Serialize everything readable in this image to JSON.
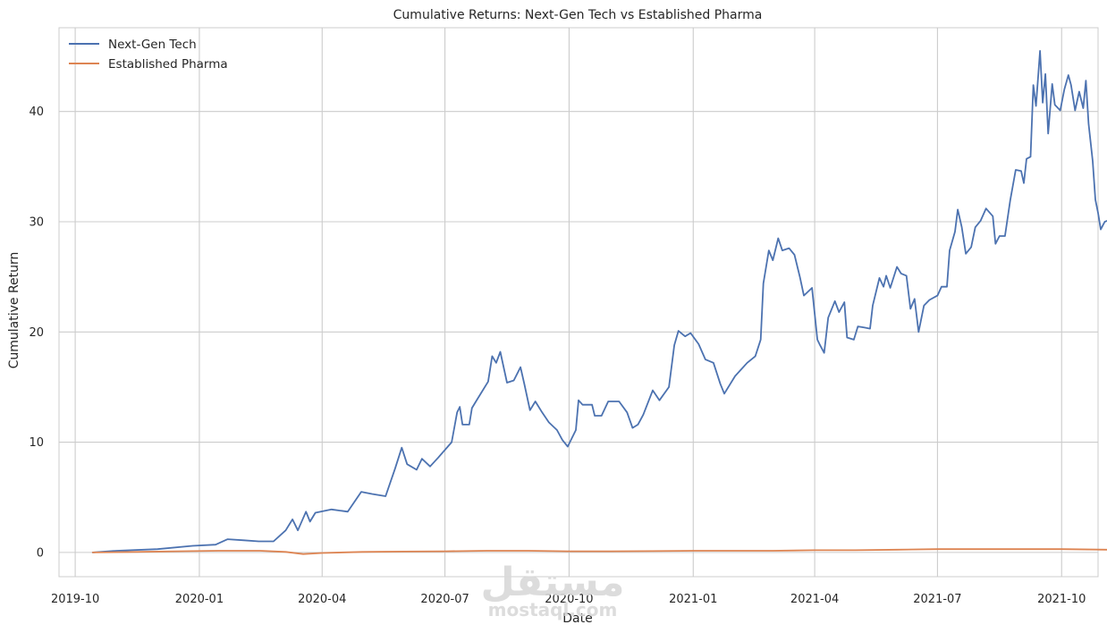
{
  "chart_data": {
    "type": "line",
    "title": "Cumulative Returns: Next-Gen Tech vs Established Pharma",
    "xlabel": "Date",
    "ylabel": "Cumulative Return",
    "xlim": [
      "2019-09-19",
      "2021-10-28"
    ],
    "ylim": [
      -2.2,
      47.6
    ],
    "x_ticks": [
      "2019-10",
      "2020-01",
      "2020-04",
      "2020-07",
      "2020-10",
      "2021-01",
      "2021-04",
      "2021-07",
      "2021-10"
    ],
    "y_ticks": [
      0,
      10,
      20,
      30,
      40
    ],
    "grid": true,
    "legend_position": "top-left",
    "series": [
      {
        "name": "Next-Gen Tech",
        "color": "#4c72b0",
        "points": [
          [
            "2019-10-14",
            0.0
          ],
          [
            "2019-11-01",
            0.15
          ],
          [
            "2019-12-01",
            0.3
          ],
          [
            "2019-12-27",
            0.6
          ],
          [
            "2020-01-13",
            0.7
          ],
          [
            "2020-01-22",
            1.2
          ],
          [
            "2020-02-03",
            1.1
          ],
          [
            "2020-02-14",
            1.0
          ],
          [
            "2020-02-25",
            1.0
          ],
          [
            "2020-03-05",
            2.0
          ],
          [
            "2020-03-10",
            3.0
          ],
          [
            "2020-03-14",
            2.0
          ],
          [
            "2020-03-20",
            3.7
          ],
          [
            "2020-03-23",
            2.8
          ],
          [
            "2020-03-27",
            3.6
          ],
          [
            "2020-04-08",
            3.9
          ],
          [
            "2020-04-20",
            3.7
          ],
          [
            "2020-04-30",
            5.5
          ],
          [
            "2020-05-08",
            5.3
          ],
          [
            "2020-05-18",
            5.1
          ],
          [
            "2020-05-25",
            7.6
          ],
          [
            "2020-05-30",
            9.5
          ],
          [
            "2020-06-03",
            8.0
          ],
          [
            "2020-06-10",
            7.5
          ],
          [
            "2020-06-14",
            8.5
          ],
          [
            "2020-06-20",
            7.8
          ],
          [
            "2020-06-26",
            8.6
          ],
          [
            "2020-07-06",
            10.0
          ],
          [
            "2020-07-10",
            12.7
          ],
          [
            "2020-07-12",
            13.2
          ],
          [
            "2020-07-14",
            11.6
          ],
          [
            "2020-07-19",
            11.6
          ],
          [
            "2020-07-21",
            13.1
          ],
          [
            "2020-07-25",
            13.9
          ],
          [
            "2020-08-02",
            15.5
          ],
          [
            "2020-08-05",
            17.8
          ],
          [
            "2020-08-08",
            17.2
          ],
          [
            "2020-08-11",
            18.2
          ],
          [
            "2020-08-16",
            15.4
          ],
          [
            "2020-08-21",
            15.6
          ],
          [
            "2020-08-26",
            16.8
          ],
          [
            "2020-08-29",
            15.2
          ],
          [
            "2020-09-02",
            12.9
          ],
          [
            "2020-09-06",
            13.7
          ],
          [
            "2020-09-11",
            12.7
          ],
          [
            "2020-09-16",
            11.8
          ],
          [
            "2020-09-22",
            11.1
          ],
          [
            "2020-09-26",
            10.2
          ],
          [
            "2020-09-30",
            9.6
          ],
          [
            "2020-10-06",
            11.1
          ],
          [
            "2020-10-08",
            13.8
          ],
          [
            "2020-10-11",
            13.4
          ],
          [
            "2020-10-18",
            13.4
          ],
          [
            "2020-10-20",
            12.4
          ],
          [
            "2020-10-25",
            12.4
          ],
          [
            "2020-10-30",
            13.7
          ],
          [
            "2020-11-07",
            13.7
          ],
          [
            "2020-11-13",
            12.7
          ],
          [
            "2020-11-17",
            11.3
          ],
          [
            "2020-11-21",
            11.6
          ],
          [
            "2020-11-25",
            12.5
          ],
          [
            "2020-12-02",
            14.7
          ],
          [
            "2020-12-07",
            13.8
          ],
          [
            "2020-12-14",
            15.0
          ],
          [
            "2020-12-18",
            18.8
          ],
          [
            "2020-12-21",
            20.1
          ],
          [
            "2020-12-26",
            19.6
          ],
          [
            "2020-12-30",
            19.9
          ],
          [
            "2021-01-05",
            18.9
          ],
          [
            "2021-01-10",
            17.5
          ],
          [
            "2021-01-16",
            17.2
          ],
          [
            "2021-01-21",
            15.3
          ],
          [
            "2021-01-24",
            14.4
          ],
          [
            "2021-02-01",
            16.0
          ],
          [
            "2021-02-10",
            17.2
          ],
          [
            "2021-02-16",
            17.8
          ],
          [
            "2021-02-20",
            19.3
          ],
          [
            "2021-02-22",
            24.4
          ],
          [
            "2021-02-26",
            27.4
          ],
          [
            "2021-03-01",
            26.5
          ],
          [
            "2021-03-05",
            28.5
          ],
          [
            "2021-03-08",
            27.4
          ],
          [
            "2021-03-13",
            27.6
          ],
          [
            "2021-03-17",
            27.0
          ],
          [
            "2021-03-21",
            25.0
          ],
          [
            "2021-03-24",
            23.3
          ],
          [
            "2021-03-30",
            24.0
          ],
          [
            "2021-04-03",
            19.3
          ],
          [
            "2021-04-05",
            18.8
          ],
          [
            "2021-04-08",
            18.1
          ],
          [
            "2021-04-11",
            21.3
          ],
          [
            "2021-04-16",
            22.8
          ],
          [
            "2021-04-19",
            21.8
          ],
          [
            "2021-04-23",
            22.7
          ],
          [
            "2021-04-25",
            19.5
          ],
          [
            "2021-04-30",
            19.3
          ],
          [
            "2021-05-03",
            20.5
          ],
          [
            "2021-05-08",
            20.4
          ],
          [
            "2021-05-12",
            20.3
          ],
          [
            "2021-05-14",
            22.4
          ],
          [
            "2021-05-19",
            24.9
          ],
          [
            "2021-05-22",
            24.1
          ],
          [
            "2021-05-24",
            25.1
          ],
          [
            "2021-05-27",
            24.0
          ],
          [
            "2021-06-01",
            25.9
          ],
          [
            "2021-06-04",
            25.3
          ],
          [
            "2021-06-08",
            25.1
          ],
          [
            "2021-06-11",
            22.1
          ],
          [
            "2021-06-14",
            23.0
          ],
          [
            "2021-06-17",
            20.0
          ],
          [
            "2021-06-21",
            22.4
          ],
          [
            "2021-06-25",
            22.9
          ],
          [
            "2021-07-01",
            23.3
          ],
          [
            "2021-07-04",
            24.1
          ],
          [
            "2021-07-08",
            24.1
          ],
          [
            "2021-07-10",
            27.4
          ],
          [
            "2021-07-14",
            29.1
          ],
          [
            "2021-07-16",
            31.1
          ],
          [
            "2021-07-19",
            29.5
          ],
          [
            "2021-07-22",
            27.1
          ],
          [
            "2021-07-26",
            27.7
          ],
          [
            "2021-07-29",
            29.5
          ],
          [
            "2021-08-02",
            30.1
          ],
          [
            "2021-08-06",
            31.2
          ],
          [
            "2021-08-11",
            30.5
          ],
          [
            "2021-08-13",
            28.0
          ],
          [
            "2021-08-16",
            28.7
          ],
          [
            "2021-08-20",
            28.7
          ],
          [
            "2021-08-24",
            32.0
          ],
          [
            "2021-08-28",
            34.7
          ],
          [
            "2021-09-01",
            34.6
          ],
          [
            "2021-09-03",
            33.5
          ],
          [
            "2021-09-05",
            35.7
          ],
          [
            "2021-09-08",
            35.9
          ],
          [
            "2021-09-10",
            42.4
          ],
          [
            "2021-09-12",
            40.5
          ],
          [
            "2021-09-15",
            45.5
          ],
          [
            "2021-09-17",
            40.8
          ],
          [
            "2021-09-19",
            43.4
          ],
          [
            "2021-09-21",
            38.0
          ],
          [
            "2021-09-24",
            42.5
          ],
          [
            "2021-09-26",
            40.6
          ],
          [
            "2021-09-30",
            40.1
          ],
          [
            "2021-10-03",
            42.0
          ],
          [
            "2021-10-06",
            43.3
          ],
          [
            "2021-10-08",
            42.4
          ],
          [
            "2021-10-11",
            40.1
          ],
          [
            "2021-10-14",
            41.8
          ],
          [
            "2021-10-17",
            40.3
          ],
          [
            "2021-10-19",
            42.8
          ],
          [
            "2021-10-21",
            38.9
          ],
          [
            "2021-10-24",
            35.5
          ],
          [
            "2021-10-26",
            32.0
          ],
          [
            "2021-10-28",
            30.8
          ],
          [
            "2021-10-30",
            29.3
          ],
          [
            "2021-11-02",
            30.0
          ],
          [
            "2021-11-04",
            30.1
          ]
        ]
      },
      {
        "name": "Established Pharma",
        "color": "#dd8452",
        "points": [
          [
            "2019-10-14",
            0.0
          ],
          [
            "2019-11-15",
            0.05
          ],
          [
            "2019-12-15",
            0.1
          ],
          [
            "2020-01-15",
            0.15
          ],
          [
            "2020-02-15",
            0.15
          ],
          [
            "2020-03-05",
            0.05
          ],
          [
            "2020-03-18",
            -0.15
          ],
          [
            "2020-04-01",
            -0.05
          ],
          [
            "2020-05-01",
            0.05
          ],
          [
            "2020-06-01",
            0.08
          ],
          [
            "2020-07-01",
            0.1
          ],
          [
            "2020-08-01",
            0.15
          ],
          [
            "2020-09-01",
            0.15
          ],
          [
            "2020-10-01",
            0.1
          ],
          [
            "2020-11-01",
            0.1
          ],
          [
            "2020-12-01",
            0.12
          ],
          [
            "2021-01-01",
            0.15
          ],
          [
            "2021-02-01",
            0.15
          ],
          [
            "2021-03-01",
            0.15
          ],
          [
            "2021-04-01",
            0.2
          ],
          [
            "2021-05-01",
            0.2
          ],
          [
            "2021-06-01",
            0.25
          ],
          [
            "2021-07-01",
            0.3
          ],
          [
            "2021-08-01",
            0.3
          ],
          [
            "2021-09-01",
            0.3
          ],
          [
            "2021-10-01",
            0.3
          ],
          [
            "2021-11-04",
            0.25
          ]
        ]
      }
    ]
  },
  "watermark": {
    "arabic": "مستقل",
    "latin": "mostaql.com"
  }
}
